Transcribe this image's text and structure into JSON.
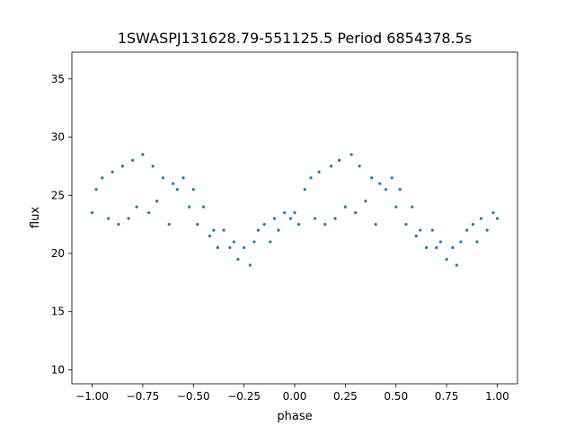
{
  "chart_data": {
    "type": "scatter",
    "title": "1SWASPJ131628.79-551125.5 Period 6854378.5s",
    "xlabel": "phase",
    "ylabel": "flux",
    "xlim": [
      -1.1,
      1.1
    ],
    "ylim": [
      8.8,
      37.3
    ],
    "xticks": [
      -1.0,
      -0.75,
      -0.5,
      -0.25,
      0.0,
      0.25,
      0.5,
      0.75,
      1.0
    ],
    "xtick_labels": [
      "−1.00",
      "−0.75",
      "−0.50",
      "−0.25",
      "0.00",
      "0.25",
      "0.50",
      "0.75",
      "1.00"
    ],
    "yticks": [
      10,
      15,
      20,
      25,
      30,
      35
    ],
    "ytick_labels": [
      "10",
      "15",
      "20",
      "25",
      "30",
      "35"
    ],
    "grid": false,
    "point_color": "#1f77b4",
    "series": [
      {
        "x": [
          -1.0,
          -0.98,
          -0.95,
          -0.92,
          -0.9,
          -0.87,
          -0.85,
          -0.82,
          -0.8,
          -0.78,
          -0.75,
          -0.72,
          -0.7,
          -0.68,
          -0.65,
          -0.62,
          -0.6,
          -0.58,
          -0.55,
          -0.52,
          -0.5,
          -0.48,
          -0.45,
          -0.42,
          -0.4,
          -0.38,
          -0.35,
          -0.32,
          -0.3,
          -0.28,
          -0.25,
          -0.22,
          -0.2,
          -0.18,
          -0.15,
          -0.12,
          -0.1,
          -0.08,
          -0.05,
          -0.02,
          0.0,
          0.02,
          0.05,
          0.08,
          0.1,
          0.12,
          0.15,
          0.18,
          0.2,
          0.22,
          0.25,
          0.28,
          0.3,
          0.32,
          0.35,
          0.38,
          0.4,
          0.42,
          0.45,
          0.48,
          0.5,
          0.52,
          0.55,
          0.58,
          0.6,
          0.62,
          0.65,
          0.68,
          0.7,
          0.72,
          0.75,
          0.78,
          0.8,
          0.82,
          0.85,
          0.88,
          0.9,
          0.92,
          0.95,
          0.98,
          1.0
        ],
        "y": [
          23.5,
          25.5,
          26.5,
          23.0,
          27.0,
          22.5,
          27.5,
          23.0,
          28.0,
          24.0,
          28.5,
          23.5,
          27.5,
          24.5,
          26.5,
          22.5,
          26.0,
          25.5,
          26.5,
          24.0,
          25.5,
          22.5,
          24.0,
          21.5,
          22.0,
          20.5,
          22.0,
          20.5,
          21.0,
          19.5,
          20.5,
          19.0,
          21.0,
          22.0,
          22.5,
          21.0,
          23.0,
          22.0,
          23.5,
          23.0,
          23.5,
          22.5,
          25.5,
          26.5,
          23.0,
          27.0,
          22.5,
          27.5,
          23.0,
          28.0,
          24.0,
          28.5,
          23.5,
          27.5,
          24.5,
          26.5,
          22.5,
          26.0,
          25.5,
          26.5,
          24.0,
          25.5,
          22.5,
          24.0,
          21.5,
          22.0,
          20.5,
          22.0,
          20.5,
          21.0,
          19.5,
          20.5,
          19.0,
          21.0,
          22.0,
          22.5,
          21.0,
          23.0,
          22.0,
          23.5,
          23.0
        ]
      }
    ]
  }
}
